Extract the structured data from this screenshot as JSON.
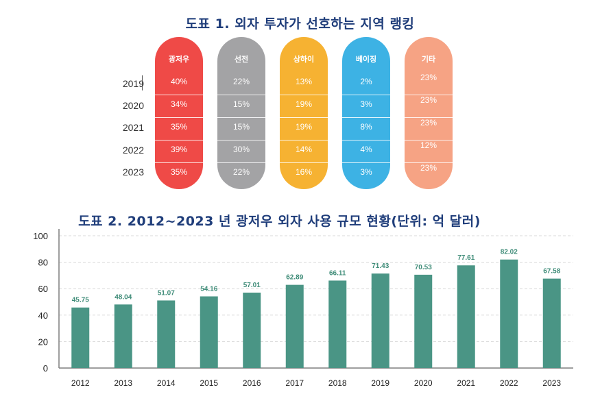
{
  "figure1": {
    "title": "도표 1. 외자 투자가 선호하는 지역 랭킹",
    "years": [
      "2019",
      "2020",
      "2021",
      "2022",
      "2023"
    ],
    "regions": [
      {
        "name": "광저우",
        "color": "#ef4a47",
        "values": [
          "40%",
          "34%",
          "35%",
          "39%",
          "35%"
        ]
      },
      {
        "name": "선전",
        "color": "#a3a3a5",
        "values": [
          "22%",
          "15%",
          "15%",
          "30%",
          "22%"
        ]
      },
      {
        "name": "상하이",
        "color": "#f6b232",
        "values": [
          "13%",
          "19%",
          "19%",
          "14%",
          "16%"
        ]
      },
      {
        "name": "베이징",
        "color": "#3db2e4",
        "values": [
          "2%",
          "3%",
          "8%",
          "4%",
          "3%"
        ]
      },
      {
        "name": "기타",
        "color": "#f6a384",
        "values": [
          "23%",
          "23%",
          "23%",
          "12%",
          "23%"
        ]
      }
    ]
  },
  "chart_data": {
    "type": "bar",
    "title": "도표 2. 2012~2023 년 광저우 외자 사용 규모 현황(단위: 억 달러)",
    "categories": [
      "2012",
      "2013",
      "2014",
      "2015",
      "2016",
      "2017",
      "2018",
      "2019",
      "2020",
      "2021",
      "2022",
      "2023"
    ],
    "values": [
      45.75,
      48.04,
      51.07,
      54.16,
      57.01,
      62.89,
      66.11,
      71.43,
      70.53,
      77.61,
      82.02,
      67.58
    ],
    "value_labels": [
      "45.75",
      "48.04",
      "51.07",
      "54.16",
      "57.01",
      "62.89",
      "66.11",
      "71.43",
      "70.53",
      "77.61",
      "82.02",
      "67.58"
    ],
    "ylim": [
      0,
      100
    ],
    "yticks": [
      "0",
      "20",
      "40",
      "60",
      "80",
      "100"
    ],
    "bar_color": "#4a9585",
    "label_color": "#3f8c78",
    "grid": true,
    "xlabel": "",
    "ylabel": ""
  }
}
